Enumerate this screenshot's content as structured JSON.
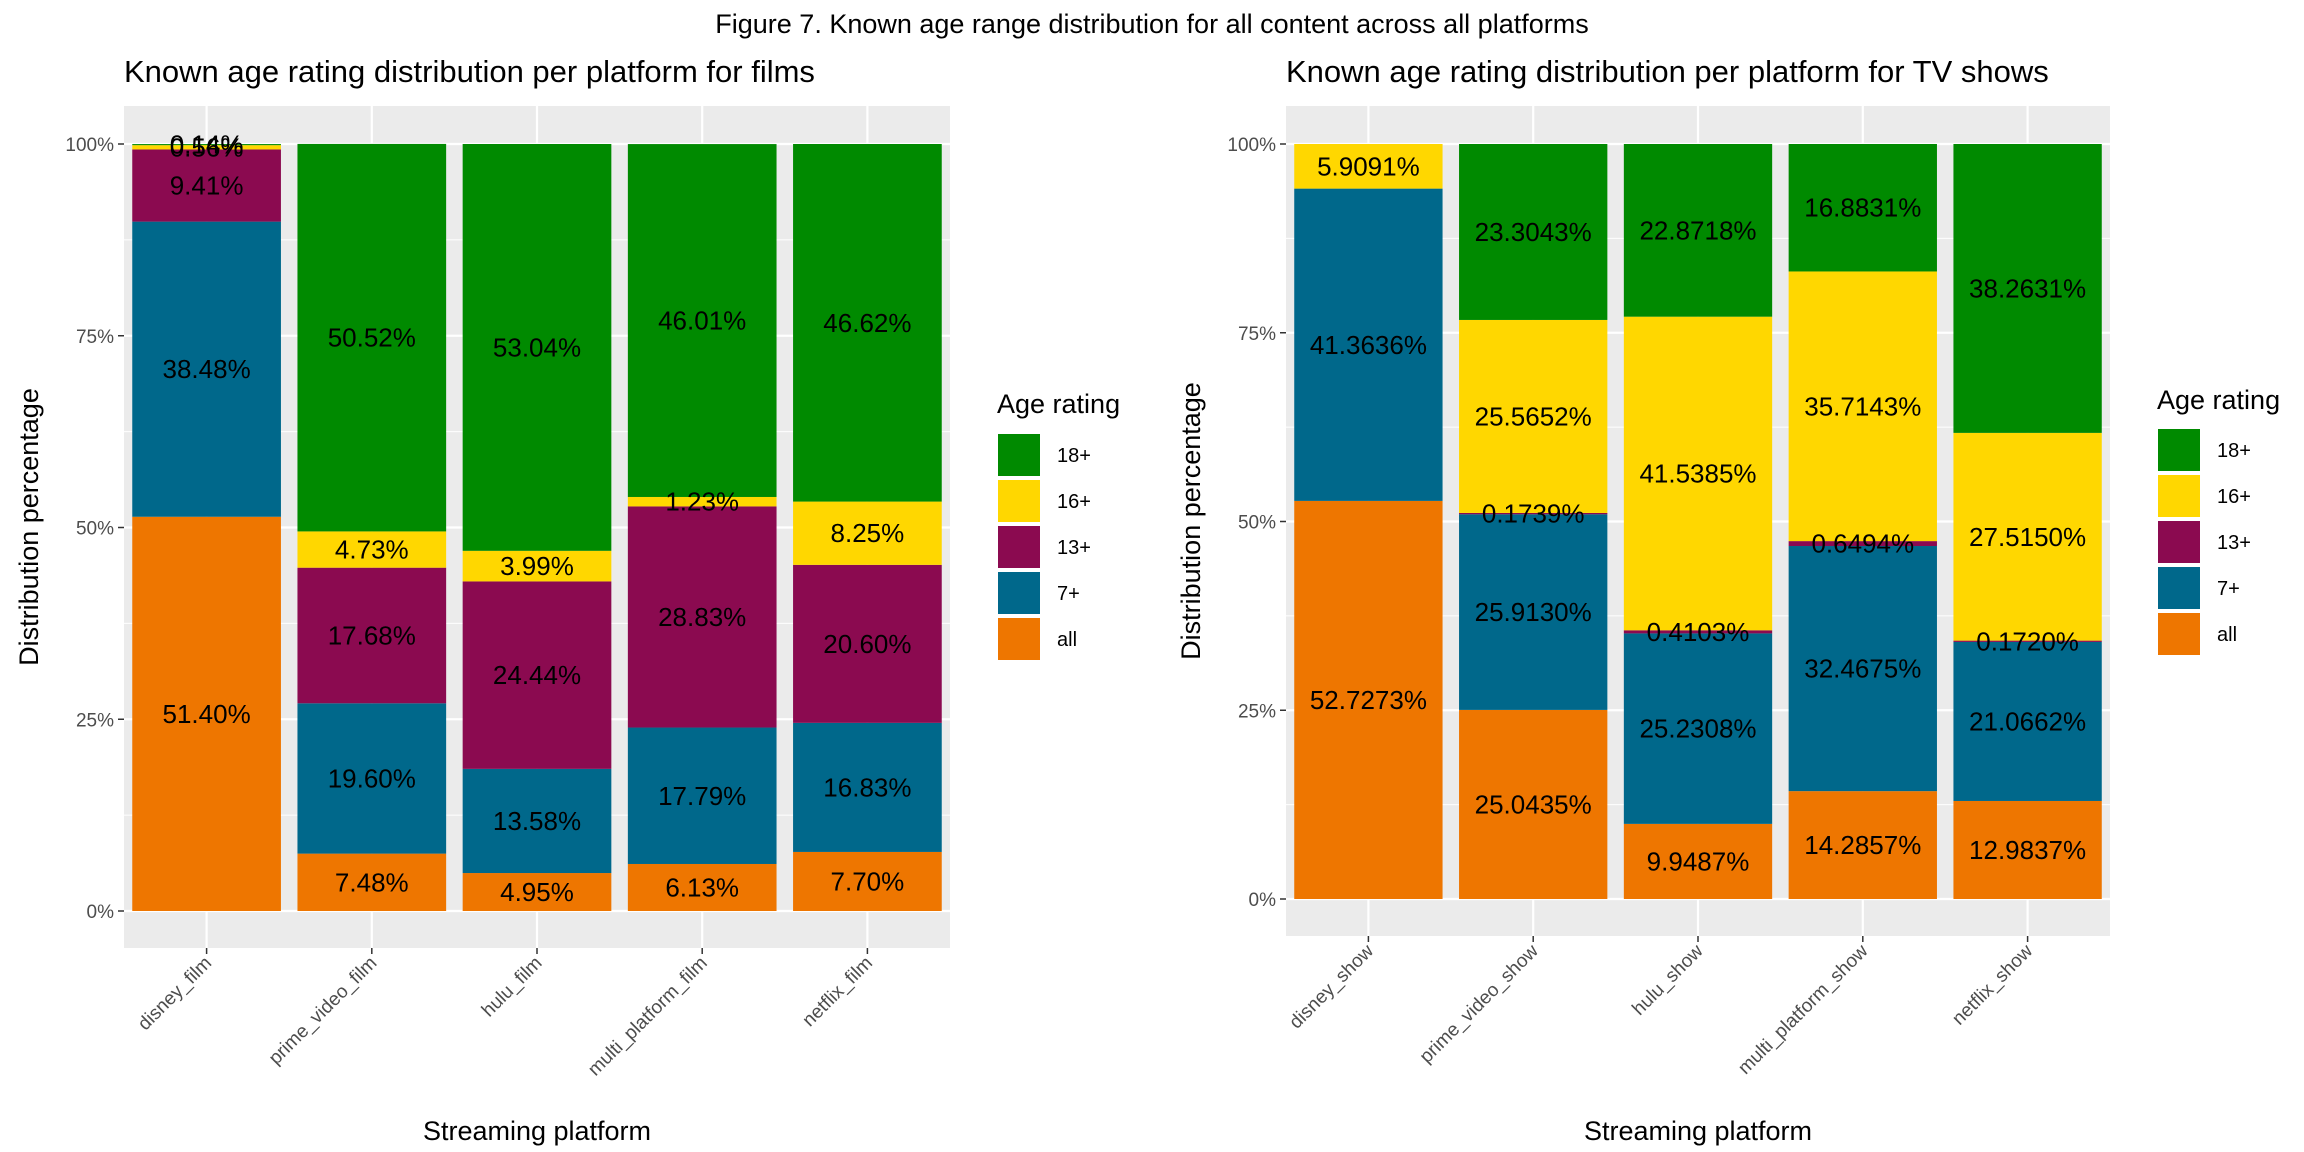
{
  "figure_title": "Figure 7. Known age range distribution for all content across all platforms",
  "colors": {
    "18+": "#008a00",
    "16+": "#ffd700",
    "13+": "#8b0a50",
    "7+": "#00688b",
    "all": "#ee7600",
    "panel_bg": "#ebebeb",
    "grid": "#ffffff"
  },
  "legend": {
    "title": "Age rating",
    "items": [
      "18+",
      "16+",
      "13+",
      "7+",
      "all"
    ]
  },
  "chart_data": [
    {
      "type": "bar",
      "stacked": true,
      "title": "Known age rating distribution per platform for films",
      "xlabel": "Streaming platform",
      "ylabel": "Distribution percentage",
      "ylim": [
        0,
        100
      ],
      "yticks": [
        "0%",
        "25%",
        "50%",
        "75%",
        "100%"
      ],
      "categories": [
        "disney_film",
        "prime_video_film",
        "hulu_film",
        "multi_platform_film",
        "netflix_film"
      ],
      "series": [
        {
          "name": "all",
          "values": [
            51.4,
            7.48,
            4.95,
            6.13,
            7.7
          ],
          "labels": [
            "51.40%",
            "7.48%",
            "4.95%",
            "6.13%",
            "7.70%"
          ]
        },
        {
          "name": "7+",
          "values": [
            38.48,
            19.6,
            13.58,
            17.79,
            16.83
          ],
          "labels": [
            "38.48%",
            "19.60%",
            "13.58%",
            "17.79%",
            "16.83%"
          ]
        },
        {
          "name": "13+",
          "values": [
            9.41,
            17.68,
            24.44,
            28.83,
            20.6
          ],
          "labels": [
            "9.41%",
            "17.68%",
            "24.44%",
            "28.83%",
            "20.60%"
          ]
        },
        {
          "name": "16+",
          "values": [
            0.56,
            4.73,
            3.99,
            1.23,
            8.25
          ],
          "labels": [
            "0.56%",
            "4.73%",
            "3.99%",
            "1.23%",
            "8.25%"
          ]
        },
        {
          "name": "18+",
          "values": [
            0.14,
            50.52,
            53.04,
            46.01,
            46.62
          ],
          "labels": [
            "0.14%",
            "50.52%",
            "53.04%",
            "46.01%",
            "46.62%"
          ]
        }
      ]
    },
    {
      "type": "bar",
      "stacked": true,
      "title": "Known age rating distribution per platform for TV shows",
      "xlabel": "Streaming platform",
      "ylabel": "Distribution percentage",
      "ylim": [
        0,
        100
      ],
      "yticks": [
        "0%",
        "25%",
        "50%",
        "75%",
        "100%"
      ],
      "categories": [
        "disney_show",
        "prime_video_show",
        "hulu_show",
        "multi_platform_show",
        "netflix_show"
      ],
      "series": [
        {
          "name": "all",
          "values": [
            52.7273,
            25.0435,
            9.9487,
            14.2857,
            12.9837
          ],
          "labels": [
            "52.7273%",
            "25.0435%",
            "9.9487%",
            "14.2857%",
            "12.9837%"
          ]
        },
        {
          "name": "7+",
          "values": [
            41.3636,
            25.913,
            25.2308,
            32.4675,
            21.0662
          ],
          "labels": [
            "41.3636%",
            "25.9130%",
            "25.2308%",
            "32.4675%",
            "21.0662%"
          ]
        },
        {
          "name": "13+",
          "values": [
            0,
            0.1739,
            0.4103,
            0.6494,
            0.172
          ],
          "labels": [
            "",
            "0.1739%",
            "0.4103%",
            "0.6494%",
            "0.1720%"
          ]
        },
        {
          "name": "16+",
          "values": [
            5.9091,
            25.5652,
            41.5385,
            35.7143,
            27.515
          ],
          "labels": [
            "5.9091%",
            "25.5652%",
            "41.5385%",
            "35.7143%",
            "27.5150%"
          ]
        },
        {
          "name": "18+",
          "values": [
            0,
            23.3043,
            22.8718,
            16.8831,
            38.2631
          ],
          "labels": [
            "",
            "23.3043%",
            "22.8718%",
            "16.8831%",
            "38.2631%"
          ]
        }
      ]
    }
  ]
}
